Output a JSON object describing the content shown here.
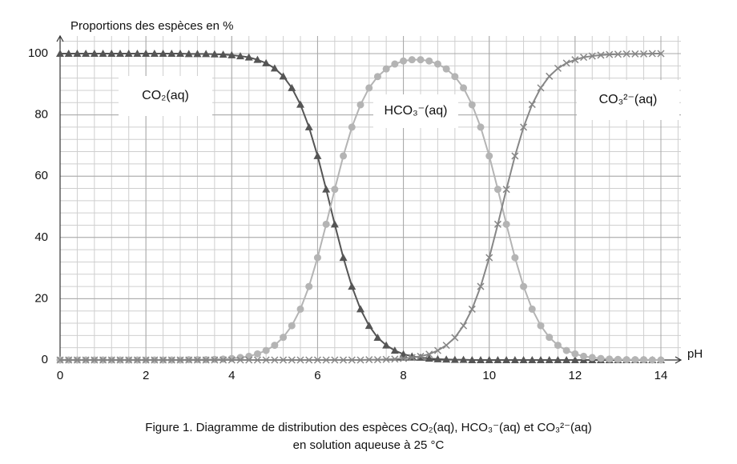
{
  "chart_data": {
    "type": "line",
    "y_label": "Proportions des espèces en %",
    "x_label": "pH",
    "caption": [
      "Figure 1. Diagramme de distribution des espèces CO₂(aq), HCO₃⁻(aq) et CO₃²⁻(aq)",
      "en solution aqueuse à 25 °C"
    ],
    "x": [
      0,
      0.2,
      0.4,
      0.6,
      0.8,
      1,
      1.2,
      1.4,
      1.6,
      1.8,
      2,
      2.2,
      2.4,
      2.6,
      2.8,
      3,
      3.2,
      3.4,
      3.6,
      3.8,
      4,
      4.2,
      4.4,
      4.6,
      4.8,
      5,
      5.2,
      5.4,
      5.6,
      5.8,
      6,
      6.2,
      6.4,
      6.6,
      6.8,
      7,
      7.2,
      7.4,
      7.6,
      7.8,
      8,
      8.2,
      8.4,
      8.6,
      8.8,
      9,
      9.2,
      9.4,
      9.6,
      9.8,
      10,
      10.2,
      10.4,
      10.6,
      10.8,
      11,
      11.2,
      11.4,
      11.6,
      11.8,
      12,
      12.2,
      12.4,
      12.6,
      12.8,
      13,
      13.2,
      13.4,
      13.6,
      13.8,
      14
    ],
    "series": [
      {
        "name": "CO₂(aq)",
        "color": "#555555",
        "marker": "triangle",
        "values": [
          100,
          100,
          100,
          100,
          100,
          100,
          100,
          100,
          100,
          100,
          100,
          100,
          100,
          100,
          100,
          99.9,
          99.9,
          99.9,
          99.8,
          99.7,
          99.5,
          99.2,
          98.8,
          98.0,
          96.9,
          95.2,
          92.6,
          88.8,
          83.4,
          76.0,
          66.6,
          55.7,
          44.3,
          33.4,
          24.0,
          16.6,
          11.2,
          7.3,
          4.8,
          3.1,
          1.9,
          1.2,
          0.8,
          0.5,
          0.3,
          0.2,
          0.1,
          0.1,
          0,
          0,
          0,
          0,
          0,
          0,
          0,
          0,
          0,
          0,
          0,
          0,
          0,
          0,
          0,
          0,
          0,
          0,
          0,
          0,
          0,
          0,
          0
        ]
      },
      {
        "name": "HCO₃⁻(aq)",
        "color": "#b4b4b4",
        "marker": "circle",
        "values": [
          0,
          0,
          0,
          0,
          0,
          0,
          0,
          0,
          0,
          0,
          0,
          0,
          0,
          0,
          0,
          0.1,
          0.1,
          0.1,
          0.2,
          0.3,
          0.5,
          0.8,
          1.2,
          2.0,
          3.1,
          4.8,
          7.4,
          11.2,
          16.6,
          24.0,
          33.4,
          44.3,
          55.7,
          66.6,
          76.0,
          83.3,
          88.8,
          92.5,
          95.0,
          96.6,
          97.6,
          98.0,
          98.0,
          97.6,
          96.6,
          95.0,
          92.5,
          88.8,
          83.3,
          76.0,
          66.6,
          55.7,
          44.3,
          33.4,
          24.0,
          16.6,
          11.2,
          7.4,
          4.8,
          3.1,
          2.0,
          1.2,
          0.8,
          0.5,
          0.3,
          0.2,
          0.1,
          0.1,
          0.1,
          0,
          0
        ]
      },
      {
        "name": "CO₃²⁻(aq)",
        "color": "#878787",
        "marker": "cross",
        "values": [
          0,
          0,
          0,
          0,
          0,
          0,
          0,
          0,
          0,
          0,
          0,
          0,
          0,
          0,
          0,
          0,
          0,
          0,
          0,
          0,
          0,
          0,
          0,
          0,
          0,
          0,
          0,
          0,
          0,
          0,
          0,
          0,
          0,
          0,
          0,
          0,
          0.1,
          0.1,
          0.2,
          0.3,
          0.5,
          0.8,
          1.2,
          1.9,
          3.1,
          4.8,
          7.3,
          11.2,
          16.6,
          24.0,
          33.4,
          44.3,
          55.7,
          66.6,
          76.0,
          83.4,
          88.8,
          92.6,
          95.2,
          96.9,
          98.0,
          98.8,
          99.2,
          99.5,
          99.7,
          99.8,
          99.9,
          99.9,
          99.9,
          100,
          100
        ]
      }
    ],
    "xlim": [
      0,
      14
    ],
    "xticks": [
      0,
      2,
      4,
      6,
      8,
      10,
      12,
      14
    ],
    "ylim": [
      0,
      100
    ],
    "yticks": [
      0,
      20,
      40,
      60,
      80,
      100
    ],
    "grid": true
  }
}
